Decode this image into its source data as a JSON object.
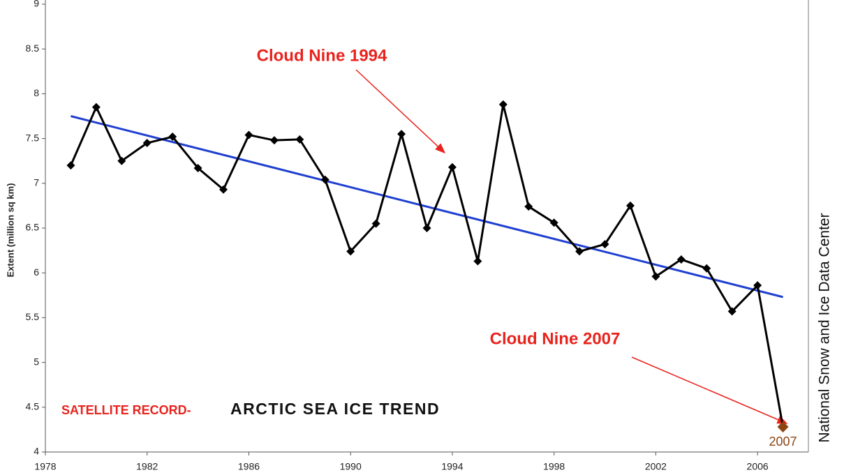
{
  "chart_data": {
    "type": "line",
    "y_label": "Extent (million sq km)",
    "x": [
      1979,
      1980,
      1981,
      1982,
      1983,
      1984,
      1985,
      1986,
      1987,
      1988,
      1989,
      1990,
      1991,
      1992,
      1993,
      1994,
      1995,
      1996,
      1997,
      1998,
      1999,
      2000,
      2001,
      2002,
      2003,
      2004,
      2005,
      2006,
      2007
    ],
    "series": [
      {
        "color": "#000000",
        "values": [
          7.2,
          7.85,
          7.25,
          7.45,
          7.52,
          7.17,
          6.93,
          7.54,
          7.48,
          7.49,
          7.04,
          6.24,
          6.55,
          7.55,
          6.5,
          7.18,
          6.13,
          7.88,
          6.74,
          6.56,
          6.24,
          6.32,
          6.75,
          5.96,
          6.15,
          6.05,
          5.57,
          5.86,
          4.28
        ]
      }
    ],
    "highlight_color": "#8b4513",
    "trend": {
      "x": [
        1979,
        2007
      ],
      "values": [
        7.75,
        5.73
      ],
      "color": "#1f3fd0"
    },
    "xlim": [
      1978,
      2008
    ],
    "xticks": [
      1978,
      1982,
      1986,
      1990,
      1994,
      1998,
      2002,
      2006
    ],
    "ylim": [
      4,
      9
    ],
    "yticks": [
      4,
      4.5,
      5,
      5.5,
      6,
      6.5,
      7,
      7.5,
      8,
      8.5,
      9
    ],
    "annotations": {
      "cloud_1994": "Cloud Nine 1994",
      "cloud_2007": "Cloud Nine 2007",
      "record": "SATELLITE RECORD-",
      "trend_title": "ARCTIC SEA ICE TREND",
      "source": "National Snow and Ice Data Center"
    }
  }
}
